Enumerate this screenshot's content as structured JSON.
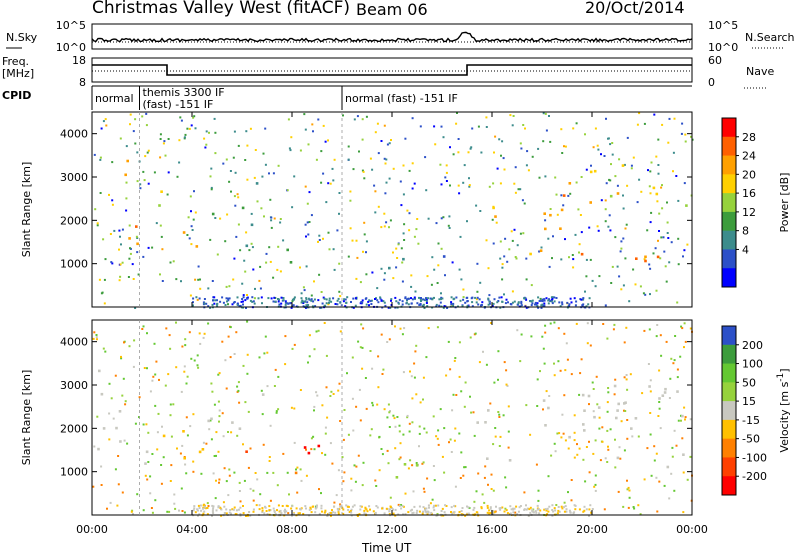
{
  "header": {
    "title": "Christmas Valley West (fitACF)",
    "beam": "Beam 06",
    "date": "20/Oct/2014"
  },
  "side_labels": {
    "nsky": "N.Sky",
    "nsearch": "N.Search",
    "freq": "Freq.\n[MHz]",
    "nave": "Nave",
    "cpid": "CPID"
  },
  "strips": {
    "noise": {
      "left_ticks": [
        "10^5",
        "10^0"
      ],
      "right_ticks": [
        "10^5",
        "10^0"
      ]
    },
    "freq": {
      "left_ticks": [
        "18",
        "8"
      ],
      "right_ticks": [
        "60",
        "0"
      ]
    },
    "cpid_segments": [
      {
        "label": "normal",
        "start_h": 0,
        "end_h": 1.9
      },
      {
        "label": "themis 3300 IF\n(fast) -151 IF",
        "start_h": 1.9,
        "end_h": 10.0
      },
      {
        "label": "normal (fast) -151 IF",
        "start_h": 10.0,
        "end_h": 24
      }
    ]
  },
  "chart_data": [
    {
      "type": "heatmap",
      "title": "",
      "xlabel": "Time UT",
      "ylabel": "Slant Range [km]",
      "xlim": [
        0,
        24
      ],
      "ylim": [
        0,
        4500
      ],
      "yticks": [
        "1000",
        "2000",
        "3000",
        "4000"
      ],
      "colorbar": {
        "label": "Power [dB]",
        "ticks": [
          "28",
          "24",
          "20",
          "16",
          "12",
          "8",
          "4"
        ],
        "colors": [
          "#ff0000",
          "#ff6000",
          "#ffa000",
          "#ffd000",
          "#96d23c",
          "#3c9c3c",
          "#3c8c8c",
          "#2c50c8",
          "#0000ff"
        ]
      },
      "regions": [
        {
          "t0": 0.0,
          "t1": 2.0,
          "r0": 1150,
          "r1": 2100,
          "value": 26
        },
        {
          "t0": 0.0,
          "t1": 2.4,
          "r0": 2850,
          "r1": 3400,
          "value": 24
        },
        {
          "t0": 2.0,
          "t1": 3.4,
          "r0": 1800,
          "r1": 2700,
          "value": 18
        },
        {
          "t0": 3.0,
          "t1": 4.5,
          "r0": 1150,
          "r1": 1900,
          "value": 24
        },
        {
          "t0": 4.4,
          "t1": 6.8,
          "r0": 1800,
          "r1": 2900,
          "value": 12
        },
        {
          "t0": 5.2,
          "t1": 7.2,
          "r0": 1250,
          "r1": 1550,
          "value": 6
        },
        {
          "t0": 7.2,
          "t1": 9.2,
          "r0": 850,
          "r1": 1400,
          "value": 10
        },
        {
          "t0": 9.2,
          "t1": 14.6,
          "r0": 900,
          "r1": 1250,
          "value": 6
        },
        {
          "t0": 15.4,
          "t1": 20.0,
          "r0": 1200,
          "r1": 2900,
          "value": 22
        },
        {
          "t0": 20.0,
          "t1": 24.0,
          "r0": 1050,
          "r1": 1700,
          "value": 26
        },
        {
          "t0": 19.6,
          "t1": 24.0,
          "r0": 2200,
          "r1": 3300,
          "value": 20
        }
      ]
    },
    {
      "type": "heatmap",
      "title": "",
      "xlabel": "Time UT",
      "ylabel": "Slant Range [km]",
      "xlim": [
        0,
        24
      ],
      "ylim": [
        0,
        4500
      ],
      "xticks": [
        "00:00",
        "04:00",
        "08:00",
        "12:00",
        "16:00",
        "20:00",
        "00:00"
      ],
      "yticks": [
        "1000",
        "2000",
        "3000",
        "4000"
      ],
      "colorbar": {
        "label": "Velocity [m s^-1]",
        "ticks": [
          "200",
          "100",
          "50",
          "15",
          "-15",
          "-50",
          "-100",
          "-200"
        ],
        "colors": [
          "#2c50c8",
          "#3c9c3c",
          "#64c832",
          "#96d23c",
          "#c8c8c0",
          "#ffc000",
          "#ff8000",
          "#ff4000",
          "#ff0000"
        ]
      },
      "regions": [
        {
          "t0": 0.0,
          "t1": 2.4,
          "r0": 1100,
          "r1": 3400,
          "value": 0
        },
        {
          "t0": 2.4,
          "t1": 4.6,
          "r0": 1150,
          "r1": 2500,
          "value": -40
        },
        {
          "t0": 4.4,
          "t1": 6.8,
          "r0": 1800,
          "r1": 3000,
          "value": 0
        },
        {
          "t0": 5.5,
          "t1": 8.0,
          "r0": 1250,
          "r1": 1500,
          "value": -150
        },
        {
          "t0": 7.3,
          "t1": 9.4,
          "r0": 1150,
          "r1": 1900,
          "value": -220
        },
        {
          "t0": 7.2,
          "t1": 9.0,
          "r0": 850,
          "r1": 1150,
          "value": -70
        },
        {
          "t0": 9.4,
          "t1": 14.6,
          "r0": 900,
          "r1": 1250,
          "value": 40
        },
        {
          "t0": 15.3,
          "t1": 24.0,
          "r0": 1100,
          "r1": 2900,
          "value": 0
        },
        {
          "t0": 19.6,
          "t1": 24.0,
          "r0": 2300,
          "r1": 3400,
          "value": 0
        }
      ]
    }
  ],
  "xlabel": "Time UT"
}
